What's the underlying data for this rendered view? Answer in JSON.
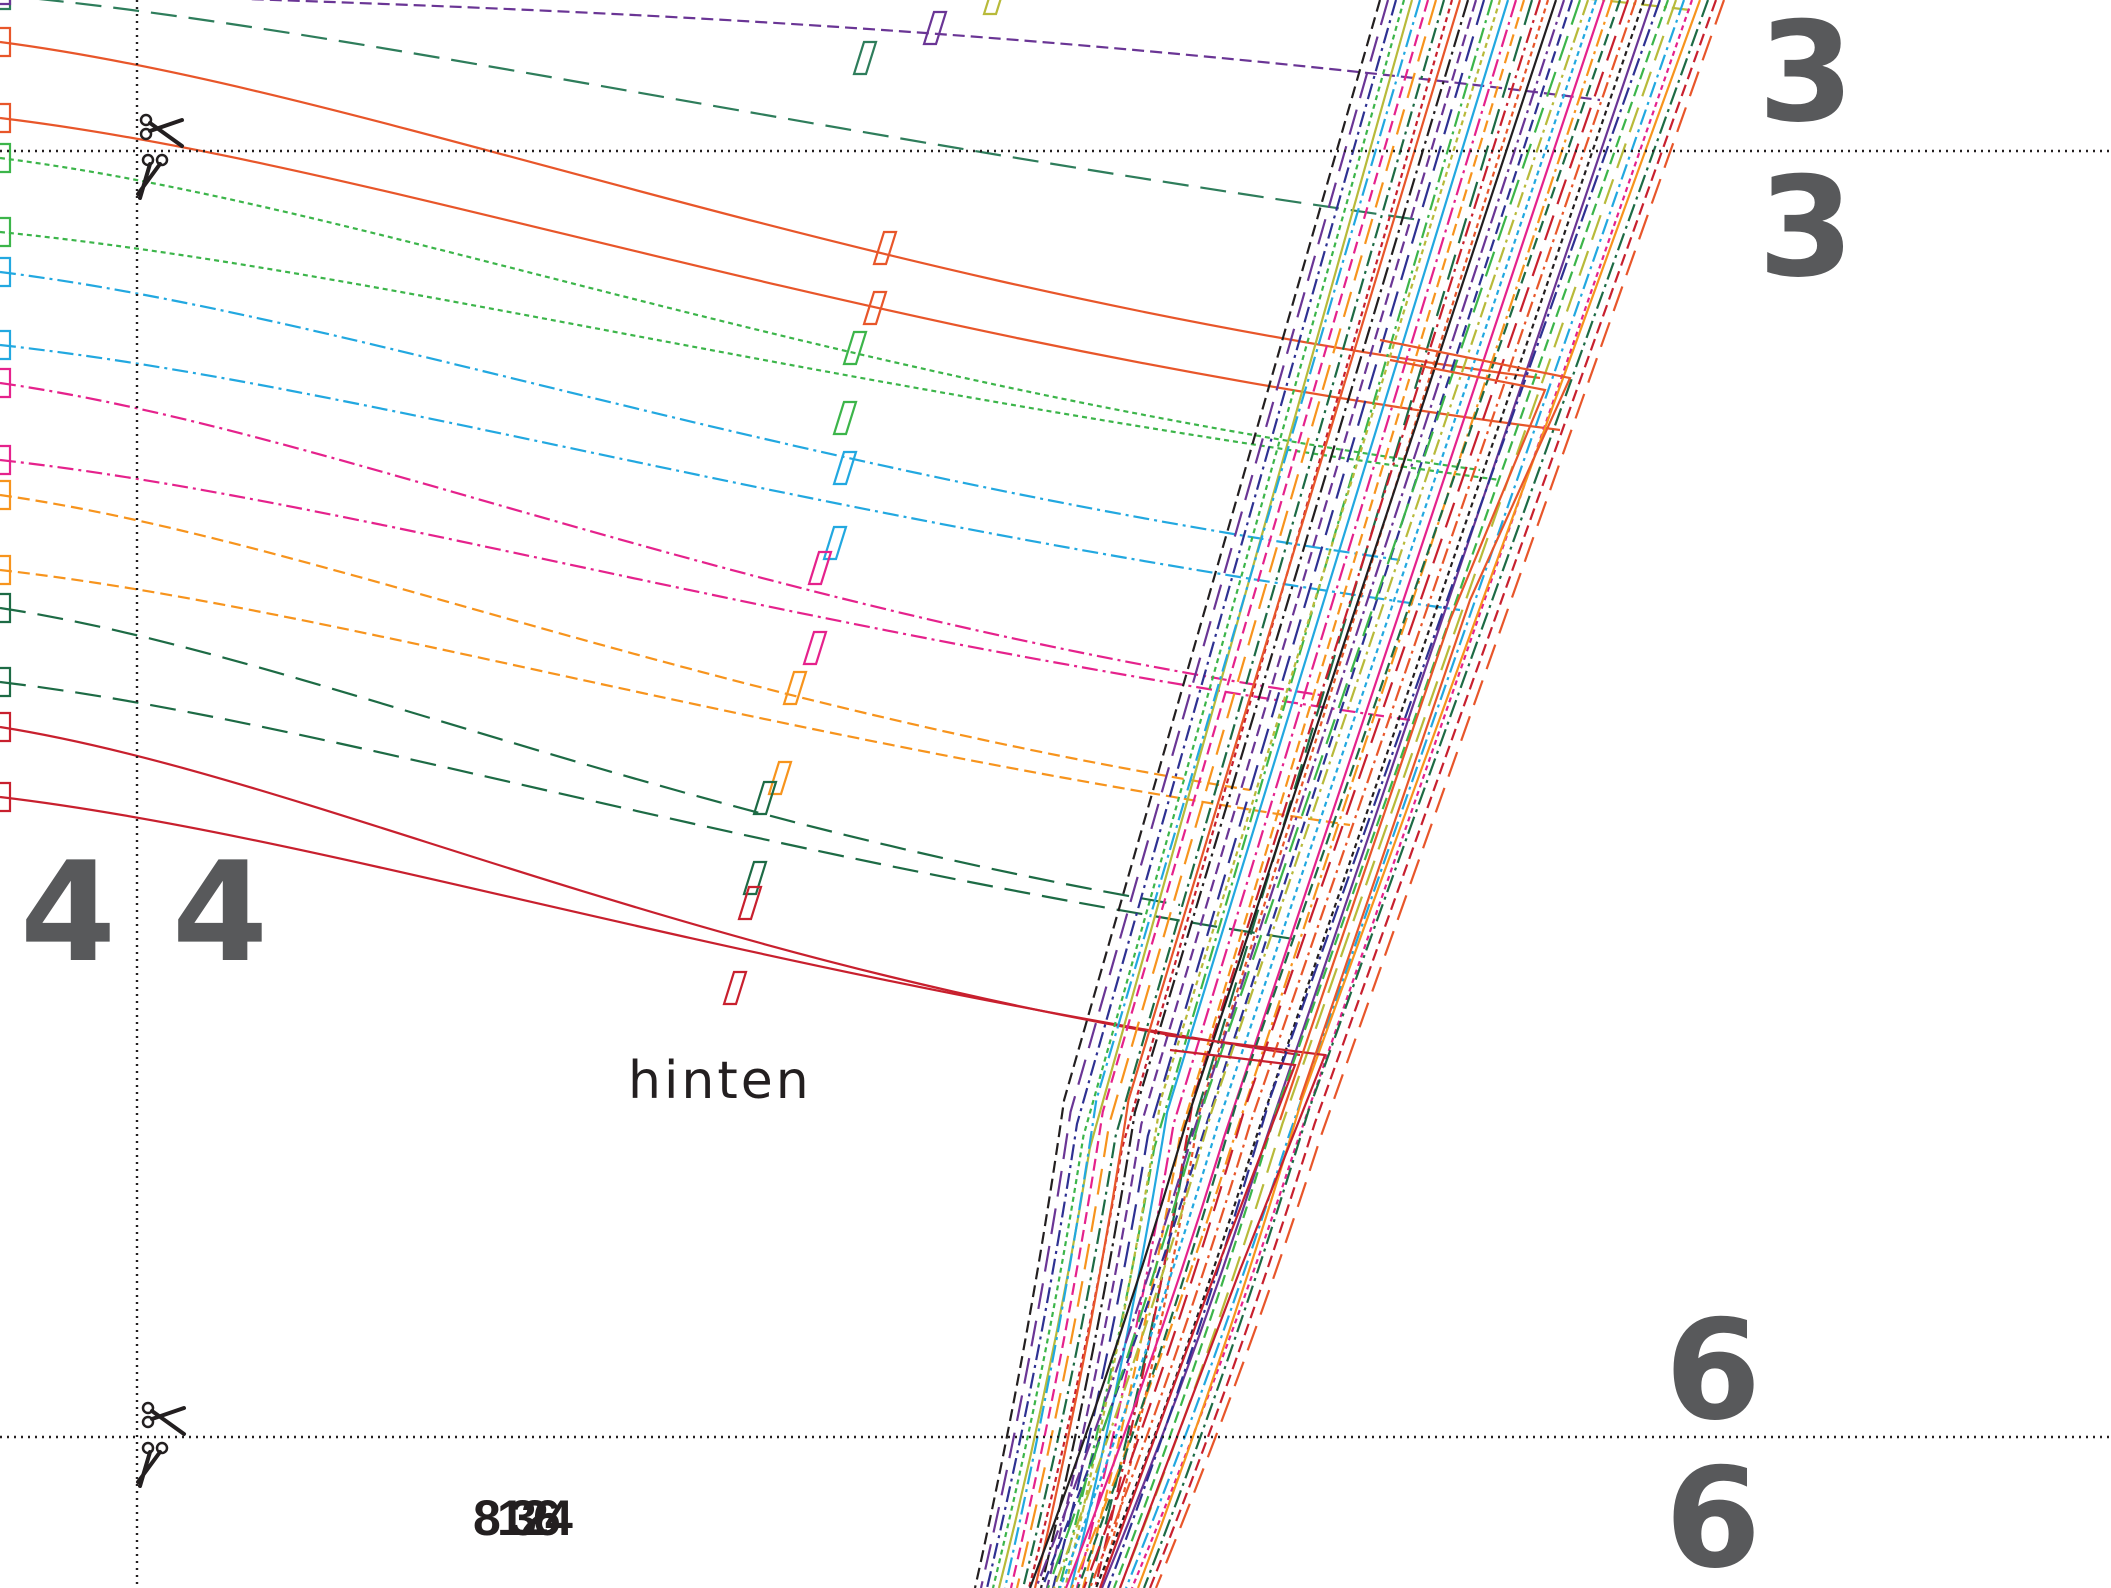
{
  "sheet": {
    "background": "#ffffff",
    "page_markers": [
      "3",
      "3",
      "4",
      "4",
      "6",
      "6"
    ],
    "piece_label": "hinten",
    "size_codes": [
      "8",
      "1",
      "2",
      "4",
      "3",
      "6"
    ],
    "cut_icon": "scissors-icon"
  },
  "curves": [
    {
      "color": "#2e7d5b",
      "dash": "26 12"
    },
    {
      "color": "#6a3595",
      "dash": "12 6"
    },
    {
      "color": "#b8ba3a",
      "dash": "18 5 3 5"
    },
    {
      "color": "#e8562a",
      "dash": ""
    },
    {
      "color": "#e8562a",
      "dash": ""
    },
    {
      "color": "#3cb54a",
      "dash": "5 4"
    },
    {
      "color": "#3cb54a",
      "dash": "5 4"
    },
    {
      "color": "#22a8e0",
      "dash": "16 5 3 5"
    },
    {
      "color": "#22a8e0",
      "dash": "16 5 3 5"
    },
    {
      "color": "#e5228c",
      "dash": "16 5 3 5"
    },
    {
      "color": "#e5228c",
      "dash": "16 5 3 5"
    },
    {
      "color": "#f7941d",
      "dash": "12 6"
    },
    {
      "color": "#f7941d",
      "dash": "12 6"
    },
    {
      "color": "#1d6b45",
      "dash": "26 12"
    },
    {
      "color": "#1d6b45",
      "dash": "26 12"
    },
    {
      "color": "#c8202e",
      "dash": ""
    },
    {
      "color": "#c8202e",
      "dash": ""
    }
  ],
  "seam_colors": [
    "#231f20",
    "#6a3595",
    "#2e3192",
    "#3cb54a",
    "#b8ba3a",
    "#22a8e0",
    "#e5228c",
    "#f7941d",
    "#1d6b45",
    "#c8202e",
    "#e8562a"
  ]
}
